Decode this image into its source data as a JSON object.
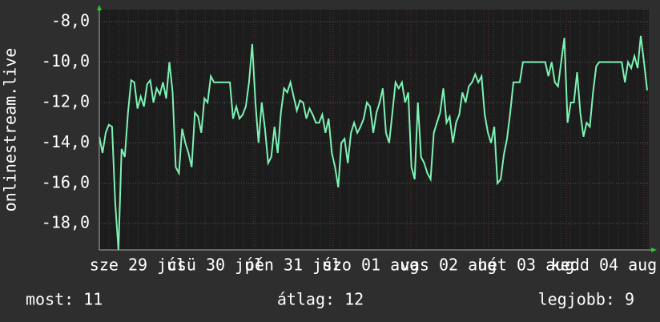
{
  "chart_data": {
    "type": "line",
    "y_label": "onlinestream.live",
    "x_tick_labels": [
      "sze 29 júl",
      "csü 30 júl",
      "pén 31 júl",
      "szo 01 aug",
      "vas 02 aug",
      "hét 03 aug",
      "kedd 04 aug"
    ],
    "ylim": [
      -19.3,
      -7.4
    ],
    "yticks": [
      {
        "value": -8,
        "label": "-8,0"
      },
      {
        "value": -10,
        "label": "-10,0"
      },
      {
        "value": -12,
        "label": "-12,0"
      },
      {
        "value": -14,
        "label": "-14,0"
      },
      {
        "value": -16,
        "label": "-16,0"
      },
      {
        "value": -18,
        "label": "-18,0"
      }
    ],
    "grid": true,
    "color": "#7df2b4",
    "values": [
      -13.7,
      -14.5,
      -13.5,
      -13.1,
      -13.2,
      -17,
      -19.3,
      -14.3,
      -14.7,
      -12.5,
      -10.9,
      -11.0,
      -12.3,
      -11.7,
      -12.2,
      -11.1,
      -10.9,
      -12.0,
      -11.3,
      -11.6,
      -11.0,
      -11.8,
      -10.0,
      -11.5,
      -15.2,
      -15.5,
      -13.3,
      -14.0,
      -14.5,
      -15.2,
      -12.5,
      -12.7,
      -13.5,
      -11.8,
      -12.0,
      -10.7,
      -11.0,
      -11.0,
      -11.0,
      -11.0,
      -11.0,
      -11.0,
      -12.8,
      -12.2,
      -12.8,
      -12.6,
      -12.2,
      -11.0,
      -9.1,
      -12.0,
      -14.0,
      -12.0,
      -13.3,
      -15.0,
      -14.7,
      -13.2,
      -14.5,
      -12.5,
      -11.3,
      -11.5,
      -11.0,
      -11.7,
      -12.4,
      -11.9,
      -12.0,
      -12.8,
      -12.3,
      -12.6,
      -13.0,
      -13.0,
      -12.6,
      -13.5,
      -12.8,
      -14.5,
      -15.2,
      -16.2,
      -14.0,
      -13.8,
      -15.0,
      -13.5,
      -13.0,
      -13.5,
      -13.2,
      -12.8,
      -12.0,
      -12.2,
      -13.5,
      -12.5,
      -12.0,
      -11.3,
      -13.5,
      -14.0,
      -12.5,
      -11.0,
      -11.3,
      -11.0,
      -12.0,
      -11.5,
      -15.2,
      -15.8,
      -12.0,
      -14.7,
      -15.0,
      -15.5,
      -15.8,
      -13.5,
      -13.0,
      -12.5,
      -11.3,
      -13.0,
      -12.7,
      -14.0,
      -13.0,
      -12.6,
      -11.5,
      -12.0,
      -11.2,
      -11.0,
      -10.6,
      -11.0,
      -10.7,
      -12.6,
      -13.5,
      -14.0,
      -13.2,
      -16.0,
      -15.8,
      -14.6,
      -13.8,
      -12.5,
      -11.0,
      -11.0,
      -11.0,
      -10.0,
      -10.0,
      -10.0,
      -10.0,
      -10.0,
      -10.0,
      -10.0,
      -10.0,
      -10.7,
      -10.0,
      -11.0,
      -11.2,
      -10.0,
      -8.8,
      -13.0,
      -12.0,
      -12.0,
      -10.5,
      -12.5,
      -13.7,
      -13.0,
      -13.2,
      -11.5,
      -10.2,
      -10.0,
      -10.0,
      -10.0,
      -10.0,
      -10.0,
      -10.0,
      -10.0,
      -10.0,
      -11.0,
      -10.0,
      -10.3,
      -9.7,
      -10.3,
      -8.7,
      -10.0,
      -11.4
    ]
  },
  "footer": [
    "most: 11",
    "átlag: 12",
    "legjobb: 9"
  ]
}
